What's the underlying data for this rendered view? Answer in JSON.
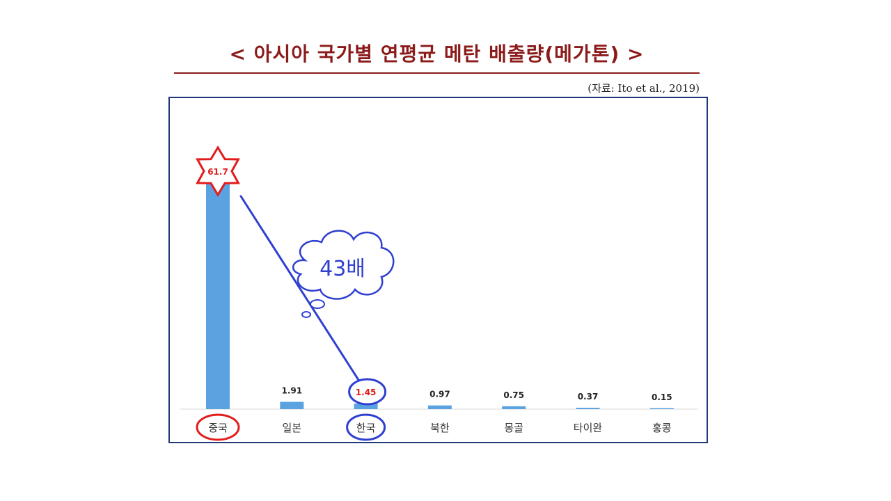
{
  "header": {
    "title": "< 아시아 국가별 연평균 메탄 배출량(메가톤) >",
    "source": "(자료: Ito et al., 2019)"
  },
  "annotation": {
    "ratio_label": "43배"
  },
  "colors": {
    "bar": "#5ba3e0",
    "title": "#8b1a1a",
    "highlight_red": "#e21b1b",
    "highlight_blue": "#2f3fd1"
  },
  "chart_data": {
    "type": "bar",
    "title": "< 아시아 국가별 연평균 메탄 배출량(메가톤) >",
    "categories": [
      "중국",
      "일본",
      "한국",
      "북한",
      "몽골",
      "타이완",
      "홍콩"
    ],
    "values": [
      61.7,
      1.91,
      1.45,
      0.97,
      0.75,
      0.37,
      0.15
    ],
    "value_labels": [
      "61.7",
      "1.91",
      "1.45",
      "0.97",
      "0.75",
      "0.37",
      "0.15"
    ],
    "xlabel": "",
    "ylabel": "",
    "ylim": [
      0,
      61.7
    ],
    "grid": false,
    "legend": "none"
  }
}
